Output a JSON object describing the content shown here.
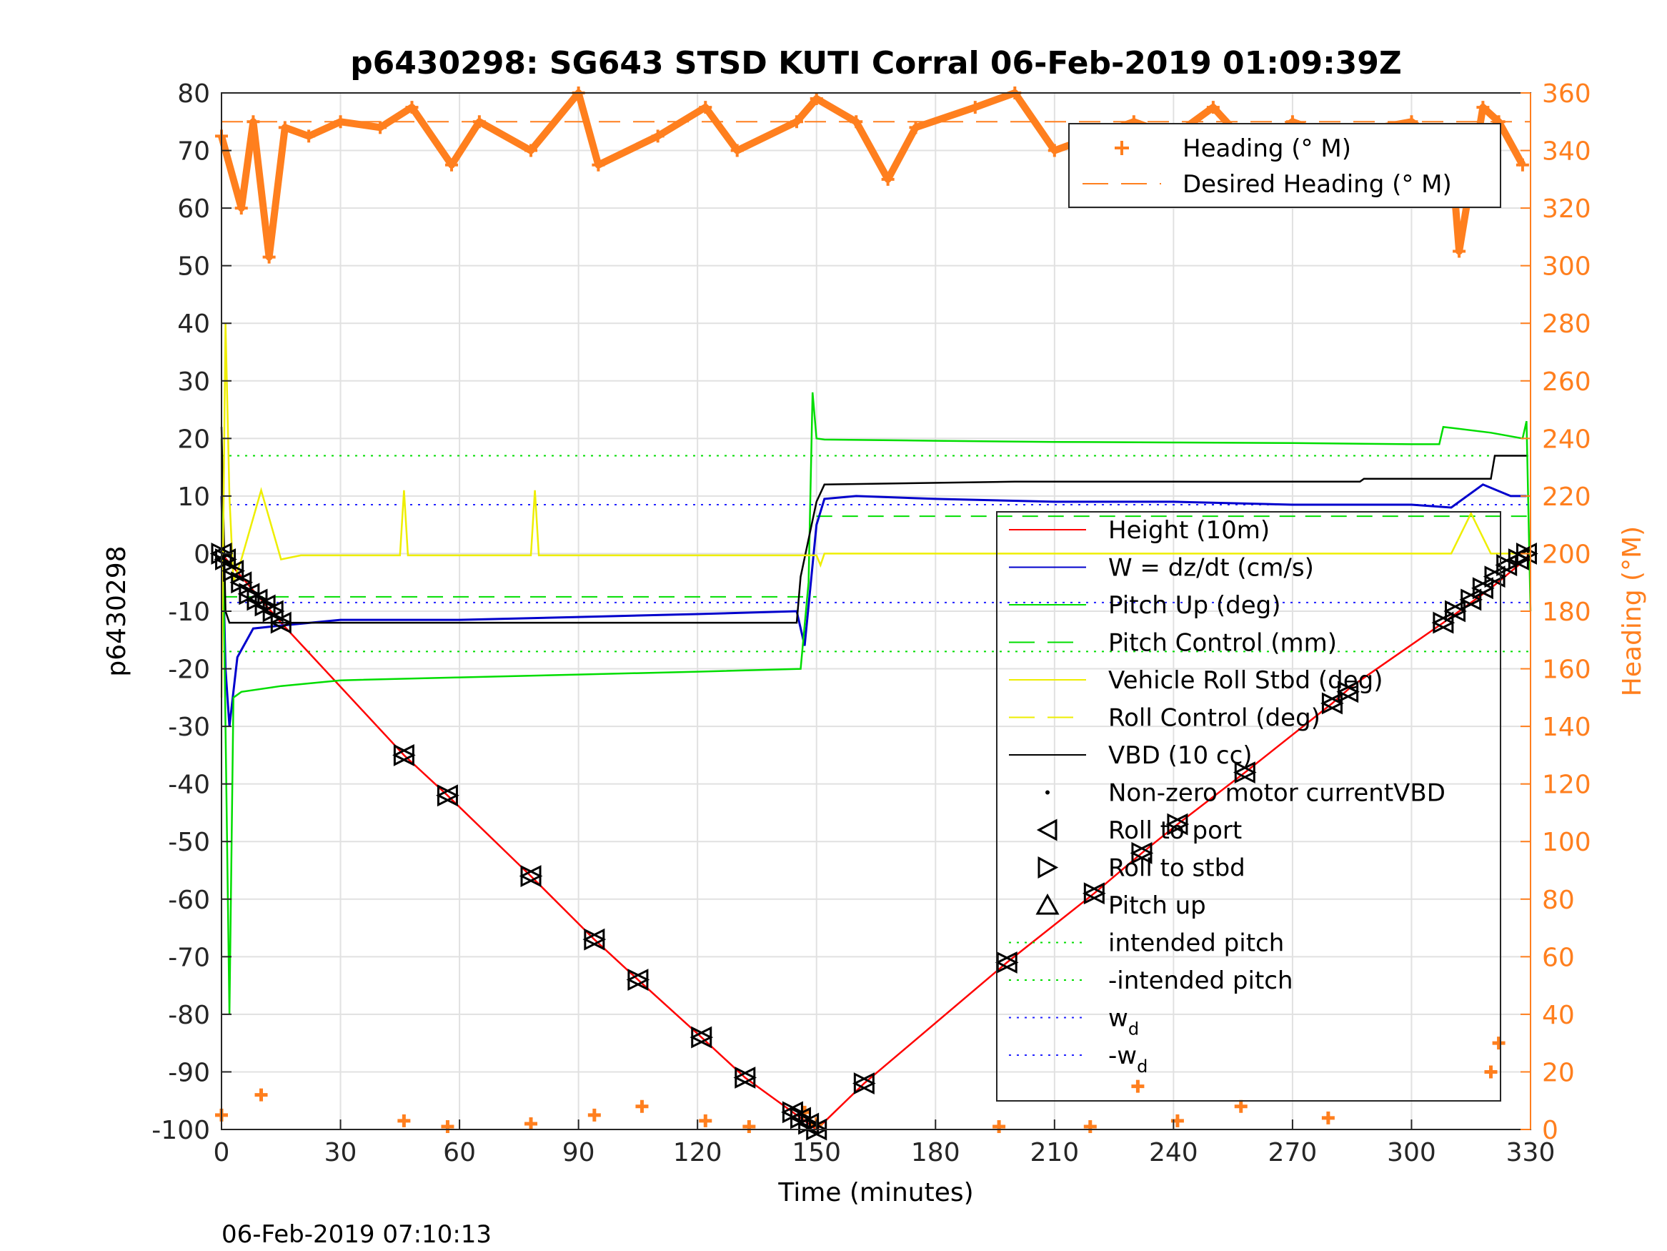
{
  "chart_data": {
    "type": "line",
    "title": "p6430298: SG643 STSD KUTI Corral 06-Feb-2019 01:09:39Z",
    "xlabel": "Time (minutes)",
    "ylabel": "p6430298",
    "y2label": "Heading (°M)",
    "timestamp": "06-Feb-2019 07:10:13",
    "xlim": [
      0,
      330
    ],
    "ylim": [
      -100,
      80
    ],
    "y2lim": [
      0,
      360
    ],
    "xticks": [
      0,
      30,
      60,
      90,
      120,
      150,
      180,
      210,
      240,
      270,
      300,
      330
    ],
    "yticks": [
      80,
      70,
      60,
      50,
      40,
      30,
      20,
      10,
      0,
      -10,
      -20,
      -30,
      -40,
      -50,
      -60,
      -70,
      -80,
      -90,
      -100
    ],
    "y2ticks": [
      360,
      340,
      320,
      300,
      280,
      260,
      240,
      220,
      200,
      180,
      160,
      140,
      120,
      100,
      80,
      60,
      40,
      20,
      0
    ],
    "grid": true,
    "colors": {
      "height": "#ff0000",
      "w": "#0000cc",
      "pitch": "#00dd00",
      "roll": "#eeee00",
      "vbd": "#000000",
      "heading": "#ff7f1e",
      "wd": "#2222ff"
    },
    "legend_top": {
      "placement": "top-right",
      "entries": [
        {
          "label": "Heading (° M)",
          "style": "plus-marker"
        },
        {
          "label": "Desired Heading (° M)",
          "style": "dashed"
        }
      ]
    },
    "legend_main": {
      "placement": "right",
      "entries": [
        {
          "label": "Height (10m)",
          "style": "solid"
        },
        {
          "label": "W = dz/dt (cm/s)",
          "style": "solid"
        },
        {
          "label": "Pitch Up (deg)",
          "style": "solid"
        },
        {
          "label": "Pitch Control (mm)",
          "style": "dashed"
        },
        {
          "label": "Vehicle Roll Stbd (deg)",
          "style": "solid"
        },
        {
          "label": "Roll Control (deg)",
          "style": "dashed"
        },
        {
          "label": "VBD (10 cc)",
          "style": "solid"
        },
        {
          "label": "Non-zero motor currentVBD",
          "style": "dot"
        },
        {
          "label": "Roll to port",
          "style": "tri-left"
        },
        {
          "label": "Roll to stbd",
          "style": "tri-right"
        },
        {
          "label": "Pitch up",
          "style": "tri-up"
        },
        {
          "label": "intended pitch",
          "style": "dotted"
        },
        {
          "label": "-intended pitch",
          "style": "dotted"
        },
        {
          "label": "w",
          "sub": "d",
          "style": "dotted"
        },
        {
          "label": "-w",
          "sub": "d",
          "style": "dotted"
        }
      ]
    },
    "series": [
      {
        "name": "Height (10m)",
        "x": [
          0,
          5,
          10,
          15,
          46,
          57,
          78,
          94,
          105,
          121,
          132,
          144,
          148,
          150,
          162,
          198,
          220,
          232,
          241,
          258,
          280,
          285,
          308,
          312,
          320,
          327,
          330
        ],
        "y": [
          0,
          -4,
          -8,
          -12,
          -35,
          -42,
          -56,
          -67,
          -74,
          -84,
          -91,
          -97,
          -99,
          -100,
          -92,
          -71,
          -59,
          -52,
          -47,
          -38,
          -26,
          -23,
          -12,
          -10,
          -6,
          -2,
          0
        ]
      },
      {
        "name": "W = dz/dt (cm/s)",
        "x": [
          0,
          1,
          2,
          4,
          8,
          15,
          30,
          60,
          90,
          120,
          145,
          147,
          150,
          152,
          160,
          180,
          210,
          240,
          270,
          300,
          310,
          318,
          325,
          329
        ],
        "y": [
          10,
          -20,
          -30,
          -18,
          -13,
          -12.5,
          -11.5,
          -11.5,
          -11,
          -10.5,
          -10,
          -16,
          5,
          9.5,
          10,
          9.5,
          9,
          9,
          8.5,
          8.5,
          8,
          12,
          10,
          10
        ]
      },
      {
        "name": "Pitch Up (deg)",
        "x": [
          0,
          1,
          2,
          3,
          5,
          15,
          30,
          60,
          90,
          120,
          146,
          148,
          149,
          150,
          152,
          180,
          210,
          240,
          270,
          300,
          307,
          308,
          320,
          328,
          329,
          330
        ],
        "y": [
          20,
          -30,
          -80,
          -25,
          -24,
          -23,
          -22,
          -21.5,
          -21,
          -20.5,
          -20,
          -5,
          28,
          20,
          19.8,
          19.6,
          19.4,
          19.3,
          19.2,
          19,
          19,
          22,
          21,
          20,
          23,
          -10
        ]
      },
      {
        "name": "VBD (10 cc)",
        "x": [
          0,
          1,
          2,
          145,
          146,
          150,
          152,
          200,
          240,
          287,
          288,
          320,
          321,
          329
        ],
        "y": [
          22,
          -10,
          -12,
          -12,
          -4,
          9,
          12,
          12.5,
          12.5,
          12.5,
          13,
          13,
          17,
          17
        ]
      },
      {
        "name": "Vehicle Roll Stbd (deg)",
        "x": [
          0,
          1,
          2,
          3,
          5,
          10,
          15,
          20,
          45,
          46,
          47,
          78,
          79,
          80,
          100,
          150,
          151,
          152,
          200,
          310,
          315,
          320,
          330
        ],
        "y": [
          -25,
          40,
          10,
          -5,
          -1,
          11,
          -1,
          -0.3,
          -0.3,
          11,
          -0.3,
          -0.3,
          11,
          -0.3,
          -0.3,
          -0.3,
          -2,
          0,
          0,
          0,
          7,
          0,
          0
        ]
      },
      {
        "name": "Heading (° M)",
        "x": [
          0,
          5,
          8,
          12,
          16,
          22,
          30,
          40,
          48,
          58,
          65,
          78,
          90,
          95,
          110,
          122,
          130,
          145,
          150,
          160,
          168,
          175,
          190,
          200,
          210,
          230,
          240,
          250,
          260,
          270,
          280,
          300,
          310,
          312,
          318,
          322,
          328
        ],
        "y": [
          345,
          320,
          350,
          303,
          348,
          345,
          350,
          348,
          355,
          335,
          350,
          340,
          360,
          335,
          345,
          355,
          340,
          350,
          358,
          350,
          330,
          348,
          355,
          360,
          340,
          350,
          345,
          355,
          340,
          350,
          345,
          350,
          340,
          305,
          355,
          350,
          335
        ]
      },
      {
        "name": "Desired Heading (° M)",
        "x": [
          0,
          330
        ],
        "y": [
          350,
          350
        ]
      }
    ],
    "reference_lines": [
      {
        "name": "intended pitch",
        "y": 17
      },
      {
        "name": "-intended pitch",
        "y": -17
      },
      {
        "name": "w_d",
        "y": 8.5
      },
      {
        "name": "-w_d",
        "y": -8.5
      },
      {
        "name": "Pitch Control",
        "segments": [
          [
            0,
            150,
            -7.5
          ],
          [
            150,
            330,
            6.5
          ]
        ]
      }
    ],
    "markers": {
      "name": "Roll/Pitch markers",
      "x": [
        0,
        1,
        3,
        5,
        7,
        9,
        11,
        13,
        15,
        46,
        57,
        78,
        94,
        105,
        121,
        132,
        144,
        146,
        148,
        150,
        162,
        198,
        220,
        232,
        241,
        258,
        280,
        284,
        308,
        311,
        315,
        318,
        321,
        324,
        327,
        329
      ],
      "y": [
        0,
        -1,
        -3,
        -5,
        -7,
        -8,
        -9,
        -10,
        -12,
        -35,
        -42,
        -56,
        -67,
        -74,
        -84,
        -91,
        -97,
        -98,
        -99,
        -100,
        -92,
        -71,
        -59,
        -52,
        -47,
        -38,
        -26,
        -24,
        -12,
        -10,
        -8,
        -6,
        -4,
        -2,
        -1,
        0
      ]
    },
    "heading_low_clusters": {
      "x": [
        0,
        10,
        46,
        57,
        78,
        94,
        106,
        122,
        133,
        147,
        150,
        196,
        219,
        231,
        241,
        257,
        279,
        320,
        322
      ],
      "y": [
        5,
        12,
        3,
        1,
        2,
        5,
        8,
        3,
        1,
        6,
        2,
        1,
        1,
        15,
        3,
        8,
        4,
        20,
        30
      ]
    }
  }
}
